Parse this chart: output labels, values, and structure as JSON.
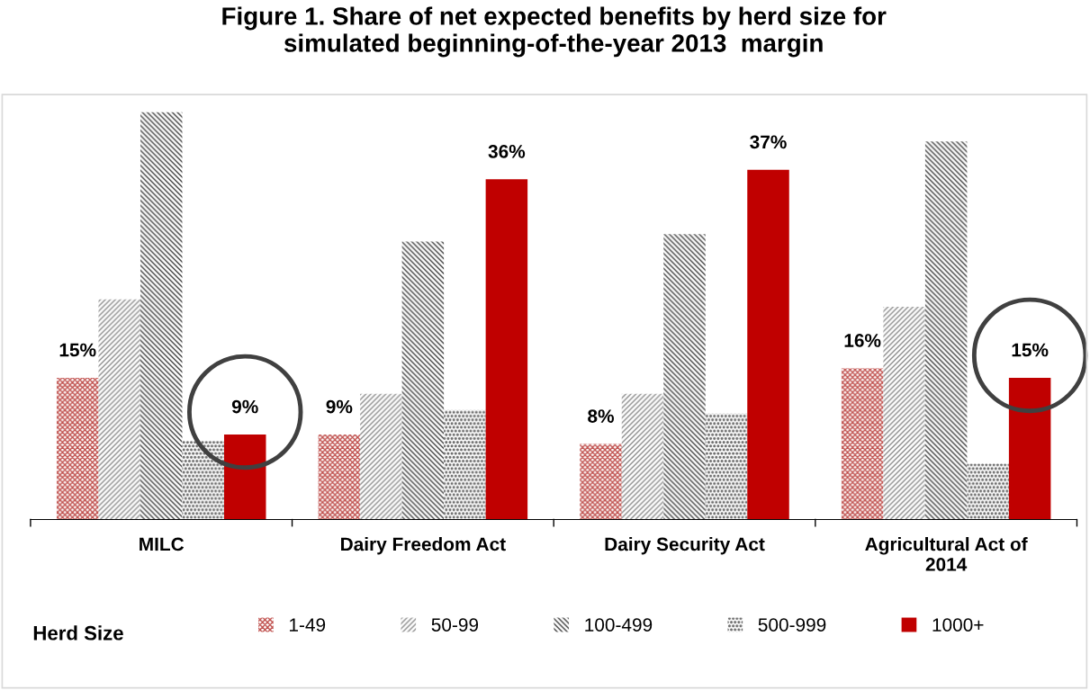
{
  "chart_data": {
    "type": "bar",
    "title": "Figure 1. Share of net expected benefits by herd size for\nsimulated beginning-of-the-year 2013  margin",
    "categories": [
      "MILC",
      "Dairy Freedom Act",
      "Dairy Security Act",
      "Agricultural Act of\n2014"
    ],
    "series": [
      {
        "name": "1-49",
        "color": "#c0504d",
        "values": [
          15,
          9,
          8,
          16
        ],
        "value_labels": [
          "15%",
          "9%",
          "8%",
          "16%"
        ]
      },
      {
        "name": "50-99",
        "color": "#8c8c8c",
        "values": [
          23.3,
          13.3,
          13.3,
          22.5
        ]
      },
      {
        "name": "100-499",
        "color": "#404040",
        "values": [
          43.1,
          29.4,
          30.2,
          40.0
        ]
      },
      {
        "name": "500-999",
        "color": "#6e6e6e",
        "values": [
          8.3,
          11.6,
          11.2,
          5.9
        ]
      },
      {
        "name": "1000+",
        "color": "#c00000",
        "values": [
          9,
          36,
          37,
          15
        ],
        "value_labels": [
          "9%",
          "36%",
          "37%",
          "15%"
        ]
      }
    ],
    "legend_title": "Herd Size",
    "legend": "bottom",
    "grid": false
  }
}
